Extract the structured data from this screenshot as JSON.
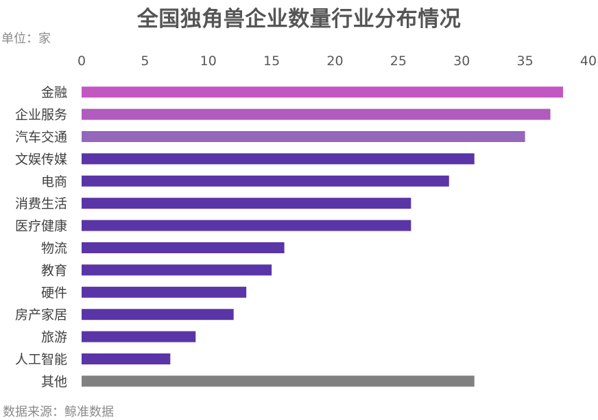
{
  "chart_data": {
    "type": "bar",
    "orientation": "horizontal",
    "title": "全国独角兽企业数量行业分布情况",
    "unit_label": "单位：家",
    "source_label": "数据来源：鲸准数据",
    "xlim": [
      0,
      40
    ],
    "xticks": [
      "0",
      "5",
      "10",
      "15",
      "20",
      "25",
      "30",
      "35",
      "40"
    ],
    "axis_position": "top",
    "grid": false,
    "categories": [
      "金融",
      "企业服务",
      "汽车交通",
      "文娱传媒",
      "电商",
      "消费生活",
      "医疗健康",
      "物流",
      "教育",
      "硬件",
      "房产家居",
      "旅游",
      "人工智能",
      "其他"
    ],
    "values": [
      38,
      37,
      35,
      31,
      29,
      26,
      26,
      16,
      15,
      13,
      12,
      9,
      7,
      31
    ],
    "colors": [
      "#c456c4",
      "#b05bbd",
      "#9467bd",
      "#5a35a8",
      "#5a35a8",
      "#5a35a8",
      "#5a35a8",
      "#5a35a8",
      "#5a35a8",
      "#5a35a8",
      "#5a35a8",
      "#5a35a8",
      "#5a35a8",
      "#808080"
    ]
  }
}
